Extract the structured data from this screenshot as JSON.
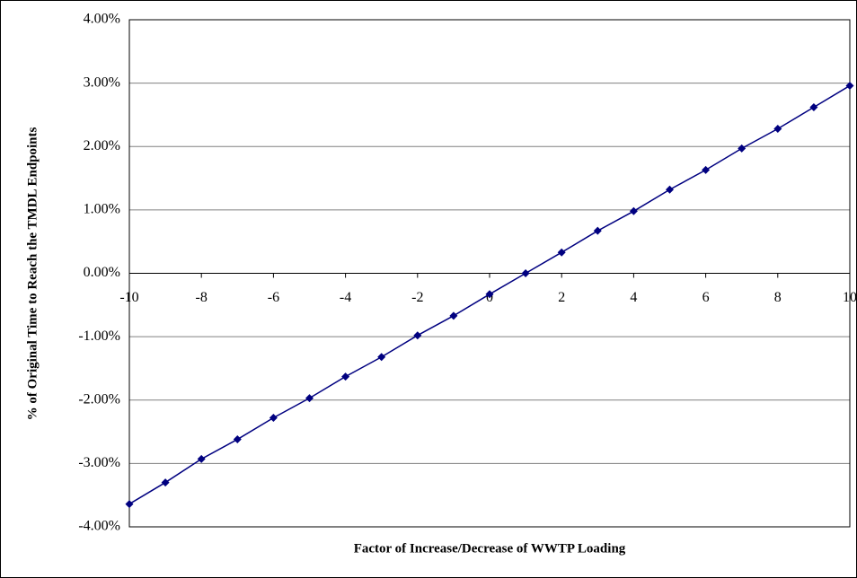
{
  "chart_data": {
    "type": "line",
    "x_label": "Factor of Increase/Decrease of WWTP Loading",
    "y_label": "% of Original Time to Reach the TMDL Endpoints",
    "x": [
      -10,
      -9,
      -8,
      -7,
      -6,
      -5,
      -4,
      -3,
      -2,
      -1,
      0,
      1,
      2,
      3,
      4,
      5,
      6,
      7,
      8,
      9,
      10
    ],
    "series": [
      {
        "color": "#000080",
        "values": [
          -3.64,
          -3.3,
          -2.93,
          -2.62,
          -2.28,
          -1.97,
          -1.63,
          -1.32,
          -0.98,
          -0.67,
          -0.33,
          0.0,
          0.33,
          0.67,
          0.98,
          1.32,
          1.63,
          1.97,
          2.28,
          2.62,
          2.96
        ]
      }
    ],
    "xlim": [
      -10,
      10
    ],
    "xticks": [
      -10,
      -8,
      -6,
      -4,
      -2,
      0,
      2,
      4,
      6,
      8,
      10
    ],
    "ylim": [
      -4,
      4
    ],
    "yticks": [
      {
        "value": -4,
        "label": "-4.00%"
      },
      {
        "value": -3,
        "label": "-3.00%"
      },
      {
        "value": -2,
        "label": "-2.00%"
      },
      {
        "value": -1,
        "label": "-1.00%"
      },
      {
        "value": 0,
        "label": "0.00%"
      },
      {
        "value": 1,
        "label": "1.00%"
      },
      {
        "value": 2,
        "label": "2.00%"
      },
      {
        "value": 3,
        "label": "3.00%"
      },
      {
        "value": 4,
        "label": "4.00%"
      }
    ],
    "grid": true
  }
}
